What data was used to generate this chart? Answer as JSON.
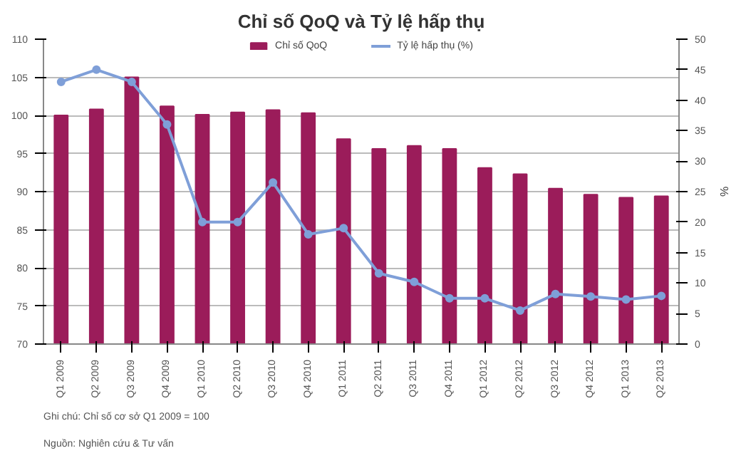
{
  "chart_data": {
    "type": "bar",
    "title": "Chỉ số QoQ và Tỷ lệ hấp thụ",
    "y2label": "%",
    "categories": [
      "Q1 2009",
      "Q2 2009",
      "Q3 2009",
      "Q4 2009",
      "Q1 2010",
      "Q2 2010",
      "Q3 2010",
      "Q4 2010",
      "Q1 2011",
      "Q2 2011",
      "Q3 2011",
      "Q4 2011",
      "Q1 2012",
      "Q2 2012",
      "Q3 2012",
      "Q4 2012",
      "Q1 2013",
      "Q2 2013"
    ],
    "series": [
      {
        "name": "Chỉ số QoQ",
        "color": "#9b1c5a",
        "values": [
          100,
          100.8,
          105,
          101.2,
          100.1,
          100.4,
          100.7,
          100.3,
          96.9,
          95.6,
          96,
          95.6,
          93.1,
          92.3,
          90.4,
          89.6,
          89.2,
          89.4
        ]
      },
      {
        "name": "Tỷ lệ hấp thụ (%)",
        "type": "line",
        "axis": "y2",
        "color": "#7f9fd8",
        "marker": "circle",
        "values": [
          43,
          45,
          43,
          36,
          20,
          20,
          26.5,
          18,
          19,
          11.6,
          10.2,
          7.5,
          7.5,
          5.5,
          8.2,
          7.8,
          7.3,
          7.9
        ]
      }
    ],
    "ylim": [
      70,
      110
    ],
    "yticks": [
      70,
      75,
      80,
      85,
      90,
      95,
      100,
      105,
      110
    ],
    "y2lim": [
      0,
      50
    ],
    "y2ticks": [
      0,
      5,
      10,
      15,
      20,
      25,
      30,
      35,
      40,
      45,
      50
    ],
    "grid": "y",
    "legend": "top",
    "annotations": [
      "Ghi chú: Chỉ số cơ sở Q1 2009 = 100",
      "Nguồn: Nghiên cứu & Tư vấn"
    ]
  }
}
